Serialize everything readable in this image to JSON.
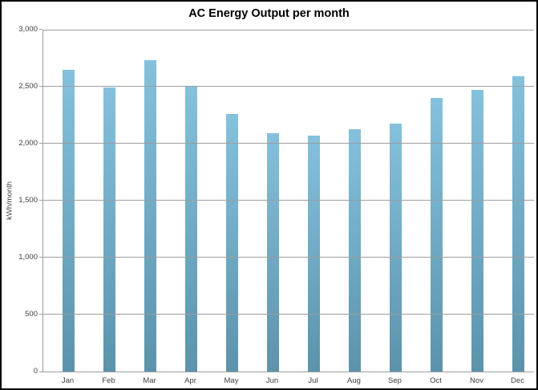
{
  "chart_data": {
    "type": "bar",
    "title": "AC Energy Output per month",
    "xlabel": "",
    "ylabel": "kWh/month",
    "categories": [
      "Jan",
      "Feb",
      "Mar",
      "Apr",
      "May",
      "Jun",
      "Jul",
      "Aug",
      "Sep",
      "Oct",
      "Nov",
      "Dec"
    ],
    "values": [
      2650,
      2490,
      2730,
      2510,
      2260,
      2090,
      2070,
      2125,
      2175,
      2405,
      2475,
      2590
    ],
    "ylim": [
      0,
      3000
    ],
    "yticks": [
      {
        "value": 0,
        "label": "0"
      },
      {
        "value": 500,
        "label": "500"
      },
      {
        "value": 1000,
        "label": "1,000"
      },
      {
        "value": 1500,
        "label": "1,500"
      },
      {
        "value": 2000,
        "label": "2,000"
      },
      {
        "value": 2500,
        "label": "2,500"
      },
      {
        "value": 3000,
        "label": "3,000"
      }
    ],
    "grid": true,
    "legend": false
  },
  "colors": {
    "bar_gradient_top": "#85c1dc",
    "bar_gradient_bottom": "#5c93ab",
    "gridline": "#9d9d9d",
    "axis": "#9d9d9d",
    "tick_label": "#3f3f3f",
    "title_text": "#000000",
    "background": "#ffffff",
    "border": "#000000"
  }
}
